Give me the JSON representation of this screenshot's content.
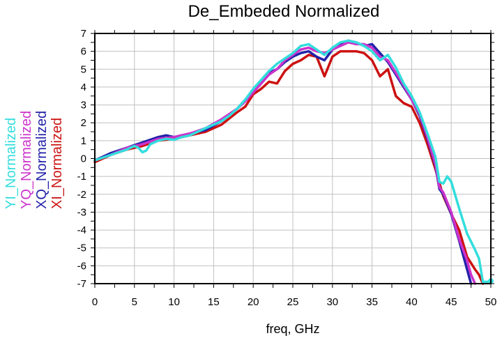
{
  "chart_data": {
    "type": "line",
    "title": "De_Embeded Normalized",
    "xlabel": "freq, GHz",
    "ylabel": "",
    "xlim": [
      0,
      50
    ],
    "ylim": [
      -7,
      7
    ],
    "x_ticks": [
      "0",
      "5",
      "10",
      "15",
      "20",
      "25",
      "30",
      "35",
      "40",
      "45",
      "50"
    ],
    "y_ticks": [
      "7",
      "6",
      "5",
      "4",
      "3",
      "2",
      "1",
      "0",
      "-1",
      "-2",
      "-3",
      "-4",
      "-5",
      "-6",
      "-7"
    ],
    "grid": true,
    "legend_position": "left, rotated vertical",
    "series": [
      {
        "name": "YI_Normalized",
        "color": "#33dddd",
        "x": [
          0,
          2,
          4,
          5,
          5.5,
          6,
          6.5,
          7,
          8,
          9,
          10,
          11,
          12,
          13,
          14,
          15,
          16,
          17,
          18,
          19,
          20,
          21,
          22,
          23,
          24,
          25,
          26,
          27,
          28,
          29,
          30,
          31,
          32,
          33,
          34,
          35,
          36,
          37,
          38,
          39,
          40,
          41,
          42,
          43,
          43.5,
          44,
          44.5,
          45,
          46,
          47,
          48,
          48.5,
          49,
          49.5,
          50
        ],
        "values": [
          -0.1,
          0.2,
          0.5,
          0.7,
          0.6,
          0.35,
          0.45,
          0.8,
          1.0,
          1.1,
          1.05,
          1.2,
          1.3,
          1.5,
          1.7,
          1.9,
          2.1,
          2.4,
          2.8,
          3.3,
          3.9,
          4.4,
          4.9,
          5.3,
          5.6,
          5.9,
          6.3,
          6.4,
          6.1,
          5.8,
          6.2,
          6.5,
          6.6,
          6.5,
          6.3,
          6.0,
          5.5,
          5.8,
          5.1,
          4.2,
          3.5,
          2.6,
          1.4,
          0.1,
          -1.3,
          -1.4,
          -1.0,
          -1.3,
          -2.8,
          -4.2,
          -5.1,
          -5.6,
          -6.9,
          -6.9,
          -6.85
        ]
      },
      {
        "name": "YQ_Normalized",
        "color": "#cc33cc",
        "x": [
          0,
          2,
          4,
          6,
          8,
          10,
          12,
          14,
          16,
          18,
          19,
          20,
          21,
          22,
          23,
          24,
          25,
          26,
          27,
          28,
          29,
          30,
          31,
          32,
          33,
          34,
          35,
          36,
          37,
          38,
          39,
          40,
          41,
          42,
          43,
          43.5,
          44,
          45,
          46,
          47,
          47.5,
          48
        ],
        "values": [
          -0.1,
          0.2,
          0.6,
          0.8,
          1.1,
          1.2,
          1.4,
          1.7,
          2.2,
          2.8,
          3.2,
          3.7,
          4.2,
          4.7,
          5.0,
          5.5,
          5.8,
          6.1,
          6.2,
          6.0,
          5.9,
          6.1,
          6.3,
          6.5,
          6.4,
          6.4,
          6.2,
          5.7,
          5.5,
          4.8,
          4.1,
          3.3,
          2.5,
          1.2,
          -0.3,
          -1.6,
          -1.9,
          -3.0,
          -4.5,
          -5.7,
          -6.5,
          -7.0
        ]
      },
      {
        "name": "XQ_Normalized",
        "color": "#2222aa",
        "x": [
          0,
          2,
          4,
          6,
          8,
          9,
          10,
          12,
          14,
          16,
          18,
          20,
          21,
          22,
          23,
          24,
          25,
          26,
          27,
          28,
          29,
          30,
          31,
          32,
          33,
          34,
          35,
          36,
          37,
          38,
          39,
          40,
          41,
          42,
          43,
          43.5,
          44,
          45,
          46,
          47,
          47.5
        ],
        "values": [
          -0.1,
          0.3,
          0.6,
          0.9,
          1.2,
          1.3,
          1.2,
          1.4,
          1.6,
          2.1,
          2.8,
          3.8,
          4.3,
          4.8,
          5.0,
          5.4,
          5.7,
          5.9,
          6.0,
          5.7,
          5.5,
          6.1,
          6.4,
          6.6,
          6.5,
          6.3,
          6.4,
          5.9,
          5.4,
          4.7,
          4.0,
          3.3,
          2.4,
          1.1,
          -0.4,
          -1.7,
          -2.0,
          -3.1,
          -4.6,
          -6.2,
          -7.0
        ]
      },
      {
        "name": "XI_Normalized",
        "color": "#cc1111",
        "x": [
          0,
          2,
          4,
          6,
          8,
          10,
          12,
          14,
          16,
          18,
          19,
          20,
          21,
          22,
          23,
          24,
          25,
          26,
          27,
          28,
          29,
          30,
          31,
          32,
          33,
          34,
          35,
          36,
          37,
          38,
          39,
          40,
          41,
          42,
          43,
          44,
          45,
          46,
          47,
          48,
          48.5,
          49
        ],
        "values": [
          -0.2,
          0.2,
          0.5,
          0.7,
          1.0,
          1.1,
          1.3,
          1.5,
          1.9,
          2.6,
          2.9,
          3.6,
          3.9,
          4.3,
          4.2,
          4.9,
          5.3,
          5.5,
          5.8,
          5.7,
          4.6,
          5.7,
          6.0,
          6.0,
          6.0,
          5.9,
          5.5,
          4.6,
          5.0,
          3.5,
          3.1,
          2.9,
          2.0,
          0.8,
          -0.6,
          -2.1,
          -3.1,
          -4.0,
          -5.5,
          -6.2,
          -6.5,
          -7.0
        ]
      }
    ]
  }
}
